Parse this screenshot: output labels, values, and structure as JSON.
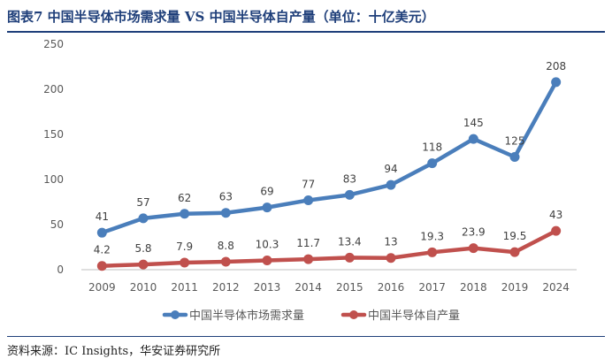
{
  "title": "图表7  中国半导体市场需求量 VS 中国半导体自产量（单位：十亿美元）",
  "source": "资料来源：IC Insights，华安证券研究所",
  "colors": {
    "demand": "#4a7ebb",
    "production": "#c0504d",
    "axis": "#bfbfbf",
    "text": "#595959"
  },
  "chart_data": {
    "type": "line",
    "categories": [
      "2009",
      "2010",
      "2011",
      "2012",
      "2013",
      "2014",
      "2015",
      "2016",
      "2017",
      "2018",
      "2019",
      "2024"
    ],
    "series": [
      {
        "name": "中国半导体市场需求量",
        "values": [
          41,
          57,
          62,
          63,
          69,
          77,
          83,
          94,
          118,
          145,
          125,
          208
        ],
        "labels": [
          "41",
          "57",
          "62",
          "63",
          "69",
          "77",
          "83",
          "94",
          "118",
          "145",
          "125",
          "208"
        ]
      },
      {
        "name": "中国半导体自产量",
        "values": [
          4.2,
          5.8,
          7.9,
          8.8,
          10.3,
          11.7,
          13.4,
          13,
          19.3,
          23.9,
          19.5,
          43
        ],
        "labels": [
          "4.2",
          "5.8",
          "7.9",
          "8.8",
          "10.3",
          "11.7",
          "13.4",
          "13",
          "19.3",
          "23.9",
          "19.5",
          "43"
        ]
      }
    ],
    "ylim": [
      0,
      250
    ],
    "yticks": [
      "0",
      "50",
      "100",
      "150",
      "200",
      "250"
    ],
    "legend_position": "bottom",
    "grid": false
  }
}
